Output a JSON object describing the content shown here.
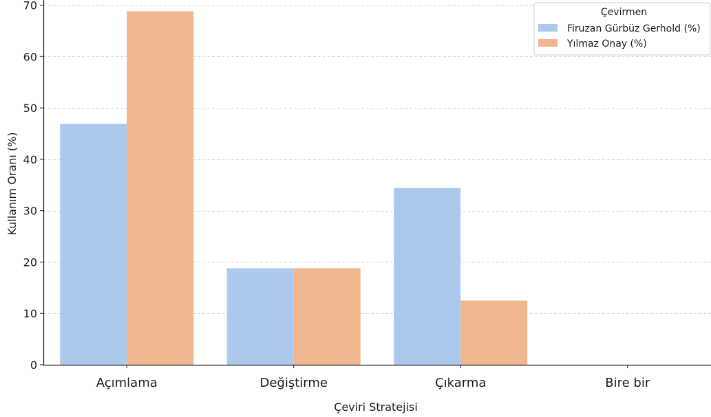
{
  "chart_data": {
    "type": "bar",
    "categories": [
      "Açımlama",
      "Değiştirme",
      "Çıkarma",
      "Bire bir"
    ],
    "series": [
      {
        "name": "Firuzan Gürbüz Gerhold (%)",
        "values": [
          46.9,
          18.8,
          34.4,
          0
        ],
        "color": "#abc9ec"
      },
      {
        "name": "Yılmaz Onay (%)",
        "values": [
          68.8,
          18.8,
          12.5,
          0
        ],
        "color": "#efb690"
      }
    ],
    "title": "",
    "xlabel": "Çeviri Stratejisi",
    "ylabel": "Kullanım Oranı (%)",
    "ylim": [
      0,
      71
    ],
    "yticks": [
      0,
      10,
      20,
      30,
      40,
      50,
      60,
      70
    ],
    "legend_title": "Çevirmen",
    "legend_position": "top-right",
    "grid": "horizontal dashed"
  }
}
